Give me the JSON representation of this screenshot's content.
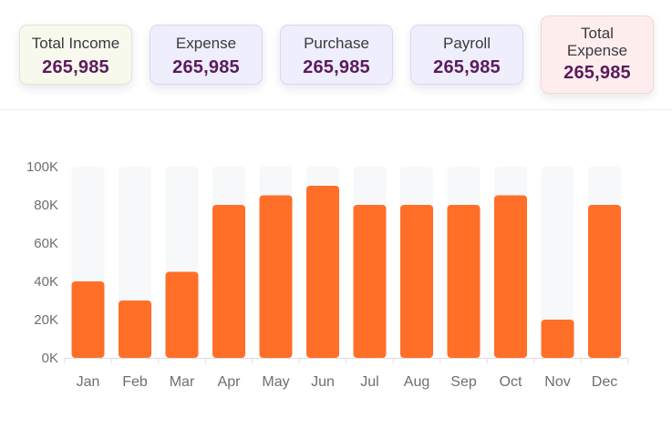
{
  "cards": [
    {
      "label": "Total Income",
      "value": "265,985",
      "bg": "#f7f9ec",
      "border": "#e0e5cf"
    },
    {
      "label": "Expense",
      "value": "265,985",
      "bg": "#eeeefc",
      "border": "#d7d8f3"
    },
    {
      "label": "Purchase",
      "value": "265,985",
      "bg": "#eeeefc",
      "border": "#d7d8f3"
    },
    {
      "label": "Payroll",
      "value": "265,985",
      "bg": "#eeeefc",
      "border": "#d7d8f3"
    },
    {
      "label": "Total Expense",
      "value": "265,985",
      "bg": "#fdeeed",
      "border": "#f1d7d5"
    }
  ],
  "chart_data": {
    "type": "bar",
    "categories": [
      "Jan",
      "Feb",
      "Mar",
      "Apr",
      "May",
      "Jun",
      "Jul",
      "Aug",
      "Sep",
      "Oct",
      "Nov",
      "Dec"
    ],
    "values": [
      40000,
      30000,
      45000,
      80000,
      85000,
      90000,
      80000,
      80000,
      80000,
      85000,
      20000,
      80000
    ],
    "ylim": [
      0,
      100000
    ],
    "yticks": [
      "0K",
      "20K",
      "40K",
      "60K",
      "80K",
      "100K"
    ],
    "bar_color": "#ff6f28",
    "track_color": "#f7f8fa",
    "grid": false,
    "legend": "none"
  }
}
